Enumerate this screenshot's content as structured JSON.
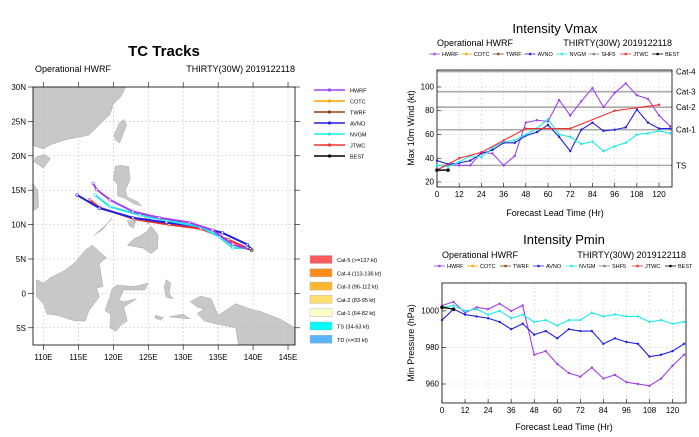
{
  "colors": {
    "HWRF": "#a040f0",
    "COTC": "#ffa500",
    "TWRF": "#8b4513",
    "AVNO": "#2020e0",
    "NVGM": "#20e8e8",
    "SHF5": "#808080",
    "JTWC": "#f03030",
    "BEST": "#000000",
    "land": "#c8c8c8"
  },
  "models": [
    "HWRF",
    "COTC",
    "TWRF",
    "AVNO",
    "NVGM",
    "SHF5",
    "JTWC",
    "BEST"
  ],
  "chart_data": [
    {
      "type": "map",
      "title": "TC Tracks",
      "left_label": "Operational HWRF",
      "right_label": "THIRTY(30W) 2019122118",
      "xlim": [
        108.5,
        146
      ],
      "ylim": [
        -7.5,
        30
      ],
      "xticks": [
        {
          "v": 110,
          "l": "110E"
        },
        {
          "v": 115,
          "l": "115E"
        },
        {
          "v": 120,
          "l": "120E"
        },
        {
          "v": 125,
          "l": "125E"
        },
        {
          "v": 130,
          "l": "130E"
        },
        {
          "v": 135,
          "l": "135E"
        },
        {
          "v": 140,
          "l": "140E"
        },
        {
          "v": 145,
          "l": "145E"
        }
      ],
      "yticks": [
        {
          "v": 30,
          "l": "30N"
        },
        {
          "v": 25,
          "l": "25N"
        },
        {
          "v": 20,
          "l": "20N"
        },
        {
          "v": 15,
          "l": "15N"
        },
        {
          "v": 10,
          "l": "10N"
        },
        {
          "v": 5,
          "l": "5N"
        },
        {
          "v": 0,
          "l": "0"
        },
        {
          "v": -5,
          "l": "5S"
        }
      ],
      "track_legend": [
        "HWRF",
        "COTC",
        "TWRF",
        "AVNO",
        "NVGM",
        "JTWC",
        "BEST"
      ],
      "tracks": [
        {
          "name": "JTWC",
          "points": [
            [
              139.8,
              6.3
            ],
            [
              136.5,
              7.8
            ],
            [
              132.5,
              9.4
            ],
            [
              128,
              10.0
            ],
            [
              123,
              10.8
            ],
            [
              118,
              12.5
            ],
            [
              116.6,
              13.6
            ]
          ]
        },
        {
          "name": "AVNO",
          "points": [
            [
              139.8,
              6.3
            ],
            [
              139.2,
              7.1
            ],
            [
              135.6,
              8.8
            ],
            [
              132.4,
              9.7
            ],
            [
              127.6,
              10.3
            ],
            [
              122.8,
              11.0
            ],
            [
              118.0,
              12.4
            ],
            [
              114.8,
              14.3
            ]
          ]
        },
        {
          "name": "NVGM",
          "points": [
            [
              139.2,
              6.6
            ],
            [
              137.1,
              6.6
            ],
            [
              135.2,
              8.2
            ],
            [
              132.4,
              9.7
            ],
            [
              127.6,
              10.6
            ],
            [
              123.8,
              11.4
            ],
            [
              119.5,
              12.6
            ],
            [
              117.4,
              14.3
            ]
          ]
        },
        {
          "name": "HWRF",
          "points": [
            [
              139.8,
              6.3
            ],
            [
              137.1,
              7.1
            ],
            [
              134.2,
              9.2
            ],
            [
              130.9,
              10.3
            ],
            [
              126.6,
              11.0
            ],
            [
              122.8,
              11.9
            ],
            [
              119.5,
              13.6
            ],
            [
              117.6,
              15.1
            ],
            [
              117.1,
              16.0
            ]
          ]
        },
        {
          "name": "BEST",
          "points": [
            [
              139.8,
              6.3
            ],
            [
              139.6,
              6.5
            ]
          ]
        }
      ],
      "category_legend": [
        {
          "label": "Cat-5 (>=137 kt)",
          "color": "#ff5a5a"
        },
        {
          "label": "Cat-4 (113-136 kt)",
          "color": "#ff8c1a"
        },
        {
          "label": "Cat-3 (96-112 kt)",
          "color": "#ffb732"
        },
        {
          "label": "Cat-2 (83-95 kt)",
          "color": "#ffe070"
        },
        {
          "label": "Cat-1 (64-82 kt)",
          "color": "#ffffc8"
        },
        {
          "label": "TS (34-63 kt)",
          "color": "#00ffff"
        },
        {
          "label": "TD (<=33 kt)",
          "color": "#5ab4ff"
        }
      ]
    },
    {
      "type": "line",
      "title": "Intensity Vmax",
      "left_label": "Operational HWRF",
      "right_label": "THIRTY(30W) 2019122118",
      "xlabel": "Forecast Lead Time (Hr)",
      "ylabel": "Max 10m Wind (kt)",
      "xlim": [
        0,
        127
      ],
      "ylim": [
        15.8,
        114.3
      ],
      "xticks": [
        0,
        12,
        24,
        36,
        48,
        60,
        72,
        84,
        96,
        108,
        120
      ],
      "yticks": [
        20,
        40,
        60,
        80,
        100
      ],
      "thresholds": [
        {
          "v": 34,
          "l": "TS"
        },
        {
          "v": 64,
          "l": "Cat-1"
        },
        {
          "v": 83,
          "l": "Cat-2"
        },
        {
          "v": 96,
          "l": "Cat-3"
        },
        {
          "v": 113,
          "l": "Cat-4"
        }
      ],
      "series": [
        {
          "name": "HWRF",
          "x": [
            0,
            6,
            12,
            18,
            24,
            30,
            36,
            42,
            48,
            54,
            60,
            66,
            72,
            78,
            84,
            90,
            96,
            102,
            108,
            114,
            120,
            126
          ],
          "values": [
            30,
            35,
            34,
            34,
            45,
            44,
            34,
            42,
            70,
            72,
            71,
            89,
            76,
            88,
            99,
            83,
            95,
            103,
            93,
            90,
            76,
            67
          ]
        },
        {
          "name": "AVNO",
          "x": [
            0,
            6,
            12,
            18,
            24,
            30,
            36,
            42,
            48,
            54,
            60,
            66,
            72,
            78,
            84,
            90,
            96,
            102,
            108,
            114,
            120,
            126
          ],
          "values": [
            38,
            35,
            36,
            38,
            44,
            47,
            53,
            53,
            59,
            62,
            68,
            58,
            46,
            64,
            70,
            63,
            64,
            66,
            81,
            70,
            65,
            65
          ]
        },
        {
          "name": "NVGM",
          "x": [
            0,
            6,
            12,
            18,
            24,
            30,
            36,
            42,
            48,
            54,
            60,
            66,
            72,
            78,
            84,
            90,
            96,
            102,
            108,
            114,
            120,
            126
          ],
          "values": [
            34,
            33,
            37,
            42,
            41,
            49,
            54,
            55,
            60,
            65,
            73,
            60,
            58,
            52,
            54,
            46,
            50,
            53,
            60,
            61,
            63,
            61
          ]
        },
        {
          "name": "JTWC",
          "x": [
            0,
            12,
            24,
            36,
            48,
            72,
            96,
            120
          ],
          "values": [
            30,
            40,
            45,
            55,
            65,
            65,
            80,
            85
          ]
        },
        {
          "name": "BEST",
          "x": [
            0,
            6
          ],
          "values": [
            30,
            30
          ]
        }
      ]
    },
    {
      "type": "line",
      "title": "Intensity Pmin",
      "left_label": "Operational HWRF",
      "right_label": "THIRTY(30W) 2019122118",
      "xlabel": "Forecast Lead Time (Hr)",
      "ylabel": "Min Pressure (hPa)",
      "xlim": [
        0,
        127
      ],
      "ylim": [
        949.6,
        1015.3
      ],
      "xticks": [
        0,
        12,
        24,
        36,
        48,
        60,
        72,
        84,
        96,
        108,
        120
      ],
      "yticks": [
        960,
        980,
        1000
      ],
      "series": [
        {
          "name": "HWRF",
          "x": [
            0,
            6,
            12,
            18,
            24,
            30,
            36,
            42,
            48,
            54,
            60,
            66,
            72,
            78,
            84,
            90,
            96,
            102,
            108,
            114,
            120,
            126
          ],
          "values": [
            1003,
            1005,
            999,
            1002,
            1001,
            1004,
            1000,
            1003,
            976,
            978,
            971,
            966,
            964,
            969,
            963,
            965,
            961,
            960,
            959,
            963,
            970,
            976
          ]
        },
        {
          "name": "AVNO",
          "x": [
            0,
            6,
            12,
            18,
            24,
            30,
            36,
            42,
            48,
            54,
            60,
            66,
            72,
            78,
            84,
            90,
            96,
            102,
            108,
            114,
            120,
            126
          ],
          "values": [
            995,
            1001,
            998,
            997,
            996,
            994,
            990,
            993,
            987,
            989,
            985,
            990,
            989,
            989,
            982,
            985,
            983,
            982,
            975,
            976,
            978,
            982
          ]
        },
        {
          "name": "NVGM",
          "x": [
            0,
            6,
            12,
            18,
            24,
            30,
            36,
            42,
            48,
            54,
            60,
            66,
            72,
            78,
            84,
            90,
            96,
            102,
            108,
            114,
            120,
            126
          ],
          "values": [
            1002,
            1003,
            1000,
            1001,
            998,
            1000,
            996,
            998,
            994,
            995,
            992,
            995,
            995,
            999,
            997,
            998,
            997,
            997,
            994,
            995,
            993,
            994
          ]
        },
        {
          "name": "BEST",
          "x": [
            0,
            6
          ],
          "values": [
            1002,
            1001
          ]
        }
      ]
    }
  ]
}
